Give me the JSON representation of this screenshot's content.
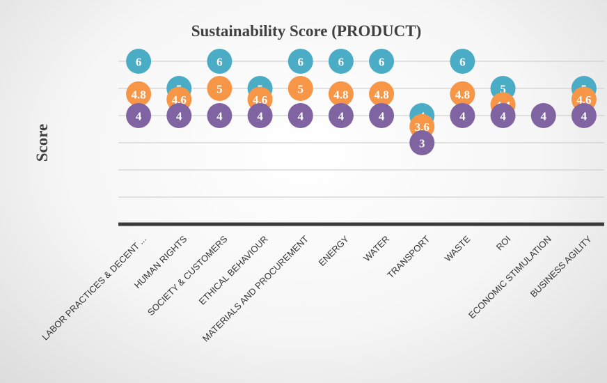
{
  "chart_data": {
    "type": "dot",
    "title": "Sustainability Score (PRODUCT)",
    "y_label": "Score",
    "categories": [
      "LABOR PRACTICES & DECENT ...",
      "HUMAN RIGHTS",
      "SOCIETY & CUSTOMERS",
      "ETHICAL BEHAVIOUR",
      "MATERIALS AND PROCUREMENT",
      "ENERGY",
      "WATER",
      "TRANSPORT",
      "WASTE",
      "ROI",
      "ECONOMIC STIMULATION",
      "BUSINESS AGILITY"
    ],
    "series": [
      {
        "color": "#4bacc6",
        "values": [
          6,
          5,
          6,
          5,
          6,
          6,
          6,
          4,
          6,
          5,
          null,
          5
        ]
      },
      {
        "color": "#f79646",
        "values": [
          4.8,
          4.6,
          5,
          4.6,
          5,
          4.8,
          4.8,
          3.6,
          4.8,
          4.4,
          null,
          4.6
        ]
      },
      {
        "color": "#8064a2",
        "values": [
          4,
          4,
          4,
          4,
          4,
          4,
          4,
          3,
          4,
          4,
          4,
          4
        ]
      }
    ],
    "ylim": [
      0,
      7
    ],
    "yticks": [
      1,
      2,
      3,
      4,
      5,
      6
    ],
    "grid": true
  }
}
